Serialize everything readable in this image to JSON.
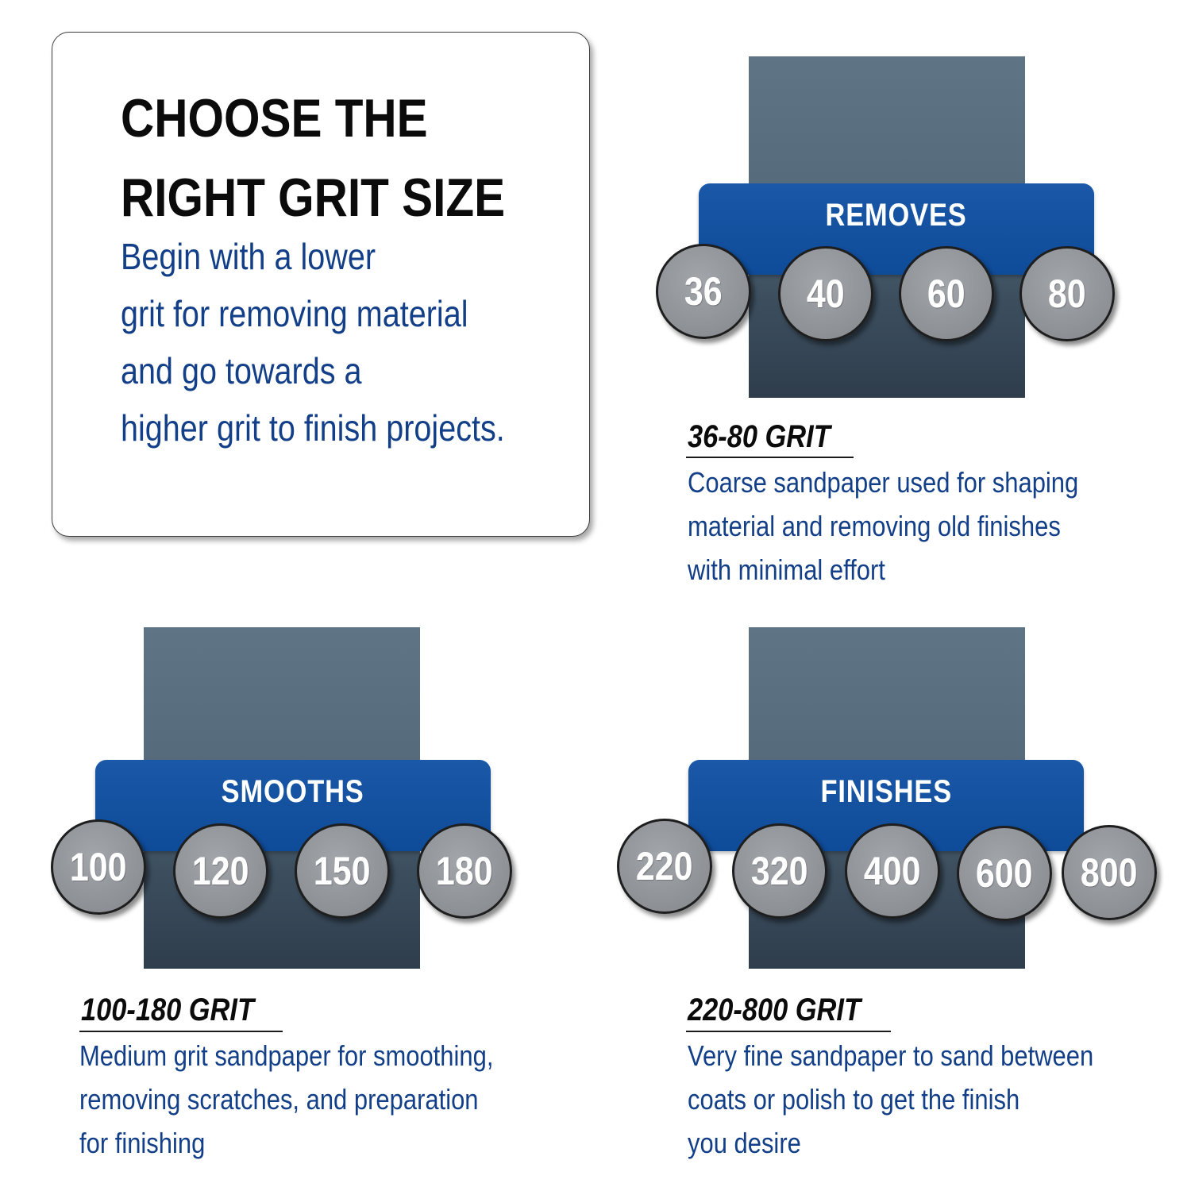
{
  "intro": {
    "title_line1": "CHOOSE THE",
    "title_line2": "RIGHT GRIT SIZE",
    "body_lines": [
      "Begin with a lower",
      "grit for removing material",
      "and go towards a",
      "higher grit to finish projects."
    ]
  },
  "panels": [
    {
      "banner": "REMOVES",
      "grits": [
        "36",
        "40",
        "60",
        "80"
      ],
      "heading": "36-80 GRIT",
      "description": [
        "Coarse sandpaper used for shaping",
        "material and removing old finishes",
        "with minimal effort"
      ]
    },
    {
      "banner": "SMOOTHS",
      "grits": [
        "100",
        "120",
        "150",
        "180"
      ],
      "heading": "100-180 GRIT",
      "description": [
        "Medium grit sandpaper for smoothing,",
        "removing scratches, and preparation",
        "for finishing"
      ]
    },
    {
      "banner": "FINISHES",
      "grits": [
        "220",
        "320",
        "400",
        "600",
        "800"
      ],
      "heading": "220-800 GRIT",
      "description": [
        "Very fine sandpaper to sand between",
        "coats or polish to get the finish",
        "you desire"
      ]
    }
  ],
  "colors": {
    "banner_blue": "#0e4b98",
    "body_text_blue": "#123f88",
    "disc_gray": "#8d9196",
    "sheet_slate": "#556a7a"
  }
}
